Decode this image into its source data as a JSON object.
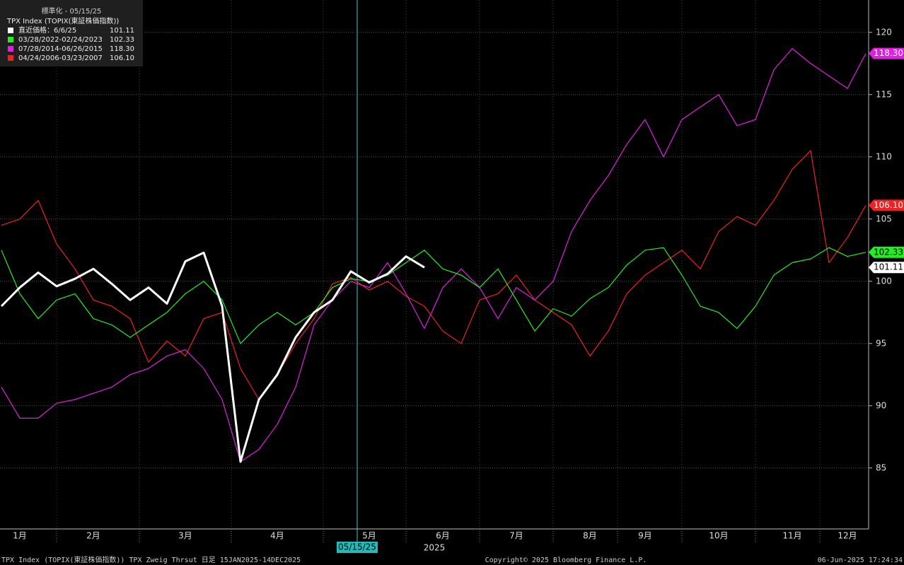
{
  "chart_data": {
    "type": "line",
    "legend_title": "標準化 - 05/15/25",
    "subtitle": "TPX Index (TOPIX(東証株価指数))",
    "marker_label": "05/15/25",
    "year_label": "2025",
    "footer_left": "TPX Index (TOPIX(東証株価指数)) TPX Zweig Thrsut  日足 15JAN2025-14DEC2025",
    "footer_center": "Copyright© 2025 Bloomberg Finance L.P.",
    "footer_right": "06-Jun-2025 17:24:34",
    "categories": [
      null,
      "1月",
      null,
      null,
      null,
      "2月",
      null,
      null,
      null,
      null,
      "3月",
      null,
      null,
      null,
      null,
      "4月",
      null,
      null,
      null,
      null,
      "5月",
      null,
      null,
      null,
      "6月",
      null,
      null,
      null,
      "7月",
      null,
      null,
      null,
      "8月",
      null,
      null,
      "9月",
      null,
      null,
      null,
      "10月",
      null,
      null,
      null,
      "11月",
      null,
      null,
      "12月",
      null
    ],
    "ylim": [
      80.1,
      122.6
    ],
    "yticks": [
      85,
      90,
      95,
      100,
      105,
      110,
      115,
      120
    ],
    "grid": true,
    "series": [
      {
        "name": "直近価格：6/6/25",
        "color": "#ffffff",
        "values": [
          98.0,
          99.5,
          100.7,
          99.6,
          100.2,
          101.0,
          99.8,
          98.5,
          99.5,
          98.2,
          101.6,
          102.3,
          98.0,
          85.5,
          90.5,
          92.5,
          95.5,
          97.5,
          98.5,
          100.8,
          99.9,
          100.6,
          102.0,
          101.11,
          null,
          null,
          null,
          null,
          null,
          null,
          null,
          null,
          null,
          null,
          null,
          null,
          null,
          null,
          null,
          null,
          null,
          null,
          null,
          null,
          null,
          null,
          null,
          null
        ],
        "value_labels": [
          null,
          null,
          null,
          null,
          null,
          null,
          null,
          null,
          null,
          null,
          null,
          null,
          null,
          null,
          null,
          null,
          null,
          null,
          null,
          null,
          null,
          null,
          null,
          "101.11",
          null,
          null,
          null,
          null,
          null,
          null,
          null,
          null,
          null,
          null,
          null,
          null,
          null,
          null,
          null,
          null,
          null,
          null,
          null,
          null,
          null,
          null,
          null,
          null
        ]
      },
      {
        "name": "03/28/2022-02/24/2023",
        "color": "#22ee22",
        "values": [
          102.5,
          99.0,
          97.0,
          98.5,
          99.0,
          97.0,
          96.5,
          95.5,
          96.5,
          97.5,
          99.0,
          100.0,
          98.5,
          95.0,
          96.5,
          97.5,
          96.5,
          97.5,
          99.5,
          100.2,
          100.0,
          100.5,
          101.5,
          102.5,
          101.0,
          100.5,
          99.5,
          101.0,
          98.5,
          96.0,
          97.8,
          97.2,
          98.6,
          99.5,
          101.3,
          102.5,
          102.7,
          100.5,
          98.0,
          97.5,
          96.2,
          98.0,
          100.5,
          101.5,
          101.8,
          102.7,
          102.0,
          102.33
        ],
        "value_labels": [
          null,
          null,
          null,
          null,
          null,
          null,
          null,
          null,
          null,
          null,
          null,
          null,
          null,
          null,
          null,
          null,
          null,
          null,
          null,
          null,
          null,
          null,
          null,
          null,
          null,
          null,
          null,
          null,
          null,
          null,
          null,
          null,
          null,
          null,
          null,
          null,
          null,
          null,
          null,
          null,
          null,
          null,
          null,
          null,
          null,
          null,
          null,
          "102.33"
        ]
      },
      {
        "name": "07/28/2014-06/26/2015",
        "color": "#e020e0",
        "values": [
          91.5,
          89.0,
          89.0,
          90.2,
          90.5,
          91.0,
          91.5,
          92.5,
          93.0,
          94.0,
          94.5,
          93.0,
          90.5,
          85.5,
          86.5,
          88.5,
          91.5,
          96.5,
          98.5,
          100.0,
          99.5,
          101.5,
          99.0,
          96.2,
          99.5,
          101.0,
          99.5,
          97.0,
          99.5,
          98.5,
          100.0,
          104.0,
          106.5,
          108.5,
          111.0,
          113.0,
          110.0,
          113.0,
          114.0,
          115.0,
          112.5,
          113.0,
          117.0,
          118.7,
          117.5,
          116.5,
          115.5,
          118.3
        ],
        "value_labels": [
          null,
          null,
          null,
          null,
          null,
          null,
          null,
          null,
          null,
          null,
          null,
          null,
          null,
          null,
          null,
          null,
          null,
          null,
          null,
          null,
          null,
          null,
          null,
          null,
          null,
          null,
          null,
          null,
          null,
          null,
          null,
          null,
          null,
          null,
          null,
          null,
          null,
          null,
          null,
          null,
          null,
          null,
          null,
          null,
          null,
          null,
          null,
          "118.30"
        ]
      },
      {
        "name": "04/24/2006-03/23/2007",
        "color": "#ee2222",
        "values": [
          104.5,
          105.0,
          106.5,
          103.0,
          101.0,
          98.5,
          98.0,
          97.0,
          93.5,
          95.2,
          94.0,
          97.0,
          97.5,
          93.0,
          90.5,
          92.5,
          95.0,
          97.0,
          99.8,
          100.3,
          99.3,
          100.0,
          98.8,
          98.0,
          96.0,
          95.0,
          98.5,
          99.0,
          100.5,
          98.5,
          97.5,
          96.5,
          94.0,
          96.0,
          99.0,
          100.5,
          101.5,
          102.5,
          101.0,
          104.0,
          105.2,
          104.5,
          106.5,
          109.0,
          110.5,
          101.5,
          103.5,
          106.1
        ],
        "value_labels": [
          null,
          null,
          null,
          null,
          null,
          null,
          null,
          null,
          null,
          null,
          null,
          null,
          null,
          null,
          null,
          null,
          null,
          null,
          null,
          null,
          null,
          null,
          null,
          null,
          null,
          null,
          null,
          null,
          null,
          null,
          null,
          null,
          null,
          null,
          null,
          null,
          null,
          null,
          null,
          null,
          null,
          null,
          null,
          null,
          null,
          null,
          null,
          "106.10"
        ]
      }
    ]
  }
}
